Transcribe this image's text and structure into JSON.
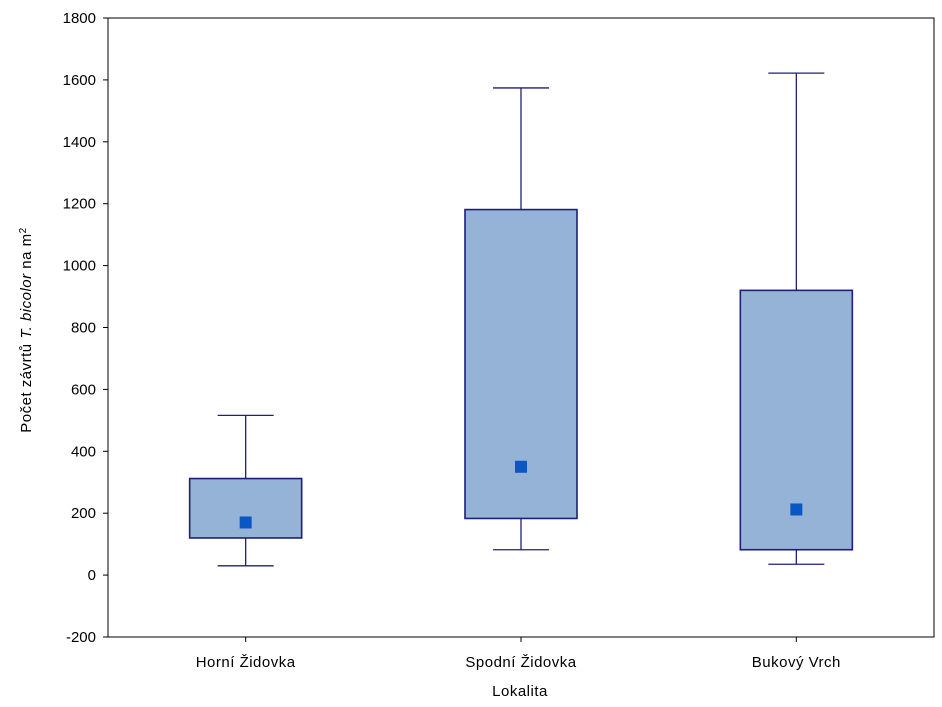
{
  "chart_data": {
    "type": "box",
    "xlabel": "Lokalita",
    "ylabel_parts": {
      "prefix": "Počet závrtů ",
      "species": "T. bicolor",
      "suffix": " na m",
      "superscript": "2"
    },
    "ylim": [
      -200,
      1800
    ],
    "yticks": [
      -200,
      0,
      200,
      400,
      600,
      800,
      1000,
      1200,
      1400,
      1600,
      1800
    ],
    "categories": [
      "Horní Židovka",
      "Spodní Židovka",
      "Bukový Vrch"
    ],
    "boxes": [
      {
        "category": "Horní Židovka",
        "whisker_low": 30,
        "q1": 120,
        "median": 170,
        "q3": 312,
        "whisker_high": 516
      },
      {
        "category": "Spodní Židovka",
        "whisker_low": 82,
        "q1": 183,
        "median": 350,
        "q3": 1181,
        "whisker_high": 1574
      },
      {
        "category": "Bukový Vrch",
        "whisker_low": 35,
        "q1": 82,
        "median": 212,
        "q3": 920,
        "whisker_high": 1622
      }
    ],
    "colors": {
      "box_fill": "#95b3d7",
      "box_stroke": "#1f1f7a",
      "median_marker": "#0a56c2",
      "axis": "#000000"
    },
    "grid": false
  }
}
